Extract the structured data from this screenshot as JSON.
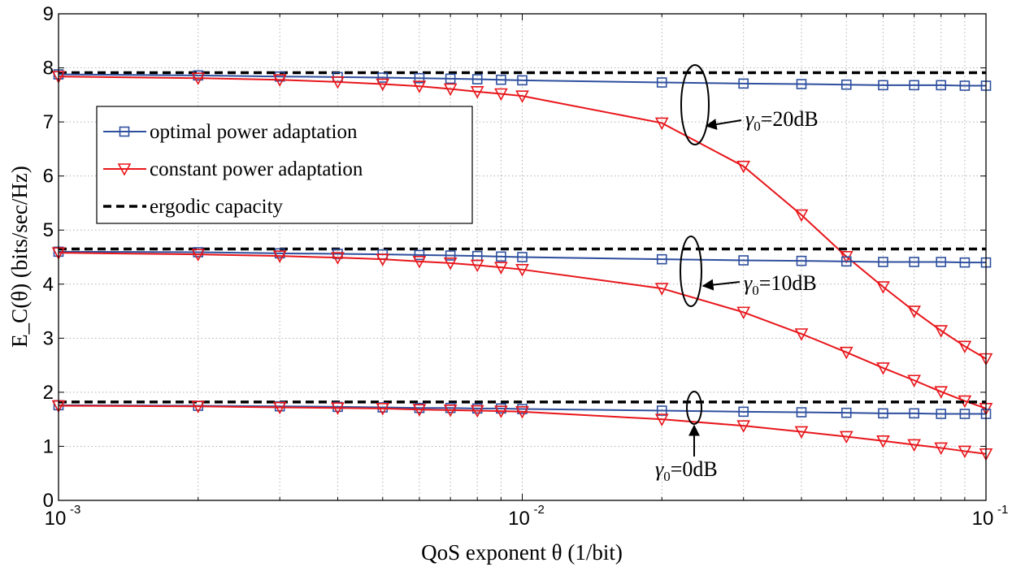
{
  "chart_data": {
    "type": "line",
    "xscale": "log",
    "xlim": [
      0.001,
      0.1
    ],
    "ylim": [
      0,
      9
    ],
    "yticks": [
      0,
      1,
      2,
      3,
      4,
      5,
      6,
      7,
      8,
      9
    ],
    "xticks": [
      {
        "base": "10",
        "exp": "-3"
      },
      {
        "base": "10",
        "exp": "-2"
      },
      {
        "base": "10",
        "exp": "-1"
      }
    ],
    "xlabel": "QoS exponent θ (1/bit)",
    "ylabel": "E_C(θ) (bits/sec/Hz)",
    "grid": true,
    "legend_position": "upper-left",
    "colors": {
      "optimal": "#2e4f9e",
      "constant": "#e8161b",
      "ergodic": "#000000"
    },
    "x": [
      0.001,
      0.002,
      0.003,
      0.004,
      0.005,
      0.006,
      0.007,
      0.008,
      0.009,
      0.01,
      0.02,
      0.03,
      0.04,
      0.05,
      0.06,
      0.07,
      0.08,
      0.09,
      0.1
    ],
    "legend": [
      {
        "key": "optimal",
        "label": "optimal power adaptation"
      },
      {
        "key": "constant",
        "label": "constant power adaptation"
      },
      {
        "key": "ergodic",
        "label": "ergodic capacity"
      }
    ],
    "groups": [
      {
        "snr": "20dB",
        "optimal": [
          7.88,
          7.86,
          7.84,
          7.83,
          7.82,
          7.81,
          7.8,
          7.79,
          7.78,
          7.77,
          7.73,
          7.71,
          7.7,
          7.69,
          7.68,
          7.68,
          7.68,
          7.67,
          7.67
        ],
        "constant": [
          7.84,
          7.81,
          7.78,
          7.74,
          7.7,
          7.66,
          7.61,
          7.56,
          7.52,
          7.48,
          6.98,
          6.18,
          5.28,
          4.51,
          3.95,
          3.5,
          3.14,
          2.85,
          2.62
        ],
        "ergodic": 7.91
      },
      {
        "snr": "10dB",
        "optimal": [
          4.6,
          4.59,
          4.57,
          4.56,
          4.55,
          4.54,
          4.53,
          4.52,
          4.51,
          4.5,
          4.46,
          4.44,
          4.43,
          4.42,
          4.41,
          4.41,
          4.41,
          4.4,
          4.4
        ],
        "constant": [
          4.58,
          4.55,
          4.52,
          4.49,
          4.46,
          4.42,
          4.39,
          4.35,
          4.31,
          4.27,
          3.92,
          3.48,
          3.08,
          2.74,
          2.45,
          2.22,
          2.01,
          1.84,
          1.7
        ],
        "ergodic": 4.65
      },
      {
        "snr": "0dB",
        "optimal": [
          1.76,
          1.75,
          1.74,
          1.73,
          1.72,
          1.71,
          1.71,
          1.7,
          1.7,
          1.69,
          1.66,
          1.64,
          1.63,
          1.62,
          1.61,
          1.61,
          1.6,
          1.6,
          1.6
        ],
        "constant": [
          1.75,
          1.74,
          1.72,
          1.71,
          1.7,
          1.68,
          1.67,
          1.66,
          1.65,
          1.64,
          1.5,
          1.38,
          1.27,
          1.18,
          1.1,
          1.03,
          0.97,
          0.91,
          0.86
        ],
        "ergodic": 1.82
      }
    ],
    "annotations": [
      {
        "group": "20dB",
        "gamma": "γ",
        "sub": "0",
        "text": "=20dB"
      },
      {
        "group": "10dB",
        "gamma": "γ",
        "sub": "0",
        "text": "=10dB"
      },
      {
        "group": "0dB",
        "gamma": "γ",
        "sub": "0",
        "text": "=0dB"
      }
    ]
  }
}
